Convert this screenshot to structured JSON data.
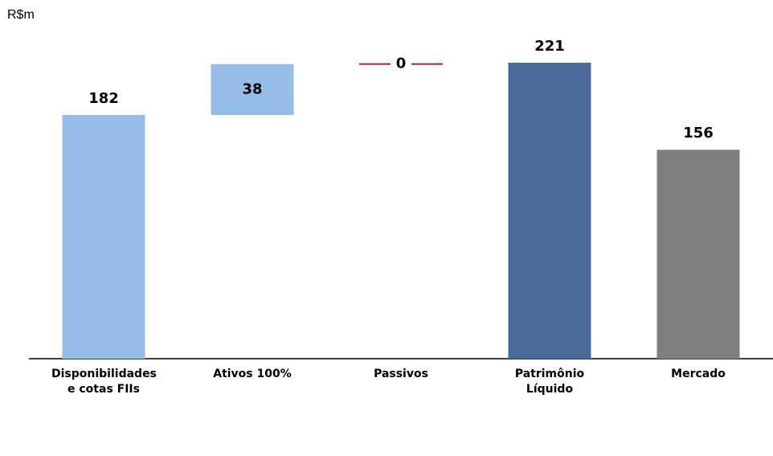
{
  "chart_data": {
    "type": "waterfall",
    "unit_label": "R$m",
    "categories": [
      "Disponibilidades e cotas FIIs",
      "Ativos 100%",
      "Passivos",
      "Patrimônio Líquido",
      "Mercado"
    ],
    "values": [
      182,
      38,
      0,
      221,
      156
    ],
    "measure": [
      "absolute",
      "relative",
      "relative",
      "absolute",
      "absolute"
    ],
    "colors": [
      "#95bde6",
      "#95bde6",
      "#b22222",
      "#4a6b9a",
      "#7f7f7f"
    ]
  }
}
